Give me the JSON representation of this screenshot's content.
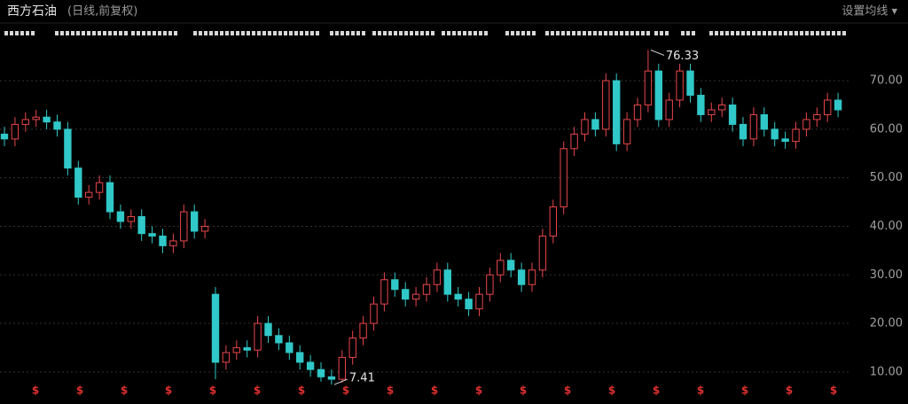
{
  "chart_data": {
    "type": "candlestick",
    "title": "西方石油",
    "subtitle": "(日线,前复权)",
    "settings_button": "设置均线 ▾",
    "up_color": "#e8474a",
    "down_color": "#30c8c8",
    "open": [
      59,
      58,
      61,
      62,
      62.5,
      61.5,
      60,
      52,
      46,
      47,
      49,
      43,
      41,
      42,
      38.5,
      38,
      36,
      37,
      43,
      39,
      26,
      12,
      14,
      15,
      14.5,
      20,
      17.5,
      16,
      14,
      12,
      10.5,
      9,
      8.5,
      13,
      17,
      20,
      24,
      29,
      27,
      25,
      26,
      28,
      31,
      26,
      25,
      23,
      26,
      30,
      33,
      31,
      28,
      31,
      38,
      44,
      56,
      59,
      62,
      60,
      70,
      57,
      62,
      65,
      72,
      62,
      66,
      72,
      67,
      63,
      64,
      65,
      61,
      58,
      63,
      60,
      58,
      57.5,
      60,
      62,
      63,
      66
    ],
    "high": [
      60.5,
      62.5,
      63.5,
      64,
      64,
      63,
      61.5,
      53.5,
      48.5,
      50.5,
      50.5,
      44.5,
      43.5,
      43.5,
      40,
      39.5,
      38.5,
      44.5,
      44.5,
      41.5,
      27.5,
      15.5,
      16.5,
      16.5,
      21.5,
      21.5,
      19,
      17.5,
      15.5,
      13.5,
      12,
      10.5,
      14.5,
      18.5,
      21.5,
      25.5,
      30.5,
      30.5,
      28.5,
      27.5,
      29.5,
      32.5,
      32.5,
      27.5,
      26.5,
      27.5,
      31.5,
      34.5,
      34.5,
      32.5,
      32.5,
      39.5,
      45.5,
      57.5,
      60.5,
      63.5,
      63.5,
      71.5,
      71.5,
      63.5,
      66.5,
      76.33,
      73.5,
      67.5,
      73.5,
      73.5,
      68.5,
      65.5,
      66.5,
      66.5,
      62.5,
      64.5,
      64.5,
      61.5,
      59.5,
      61.5,
      63.5,
      64.5,
      67.5,
      67.5
    ],
    "low": [
      56.5,
      56.5,
      59.5,
      60.5,
      60,
      58.5,
      50.5,
      44.5,
      44.5,
      45.5,
      41.5,
      39.5,
      39.5,
      37,
      36.5,
      34.5,
      34.5,
      35.5,
      37.5,
      37.5,
      8.5,
      10.5,
      12.5,
      13,
      13,
      16,
      14.5,
      12.5,
      10.5,
      9,
      8,
      7.41,
      7.8,
      11.5,
      15.5,
      18.5,
      22.5,
      25.5,
      23.5,
      23.5,
      24.5,
      26.5,
      24.5,
      23.5,
      21.5,
      21.5,
      24.5,
      28.5,
      29.5,
      26.5,
      26.5,
      29.5,
      36.5,
      42.5,
      54.5,
      57.5,
      58.5,
      58.5,
      55.5,
      55.5,
      60.5,
      63.5,
      60.5,
      60.5,
      64.5,
      65.5,
      61.5,
      61.5,
      62.5,
      59.5,
      56.5,
      56.5,
      58.5,
      56.5,
      56,
      56,
      58.5,
      60.5,
      61.5,
      62.5
    ],
    "close": [
      58,
      61,
      62,
      62.5,
      61.5,
      60,
      52,
      46,
      47,
      49,
      43,
      41,
      42,
      38.5,
      38,
      36,
      37,
      43,
      39,
      40,
      12,
      14,
      15,
      14.5,
      20,
      17.5,
      16,
      14,
      12,
      10.5,
      9,
      8.5,
      13,
      17,
      20,
      24,
      29,
      27,
      25,
      26,
      28,
      31,
      26,
      25,
      23,
      26,
      30,
      33,
      31,
      28,
      31,
      38,
      44,
      56,
      59,
      62,
      60,
      70,
      57,
      62,
      65,
      72,
      62,
      66,
      72,
      67,
      63,
      64,
      65,
      61,
      58,
      63,
      60,
      58,
      57.5,
      60,
      62,
      63,
      66,
      64
    ],
    "ylim": [
      3.4,
      77.5
    ],
    "yticks": [
      {
        "value": 10,
        "label": "10.00"
      },
      {
        "value": 20,
        "label": "20.00"
      },
      {
        "value": 30,
        "label": "30.00"
      },
      {
        "value": 40,
        "label": "40.00"
      },
      {
        "value": 50,
        "label": "50.00"
      },
      {
        "value": 60,
        "label": "60.00"
      },
      {
        "value": 70,
        "label": "70.00"
      }
    ],
    "grid": true,
    "annotations": [
      {
        "text": "76.33",
        "value": 76.33,
        "index": 61
      },
      {
        "text": "7.41",
        "value": 7.41,
        "index": 31
      }
    ],
    "dividend_markers": [
      "$",
      "$",
      "$",
      "$",
      "$",
      "$",
      "$",
      "$",
      "$",
      "$",
      "$",
      "$",
      "$",
      "$",
      "$",
      "$",
      "$",
      "$",
      "$"
    ]
  }
}
